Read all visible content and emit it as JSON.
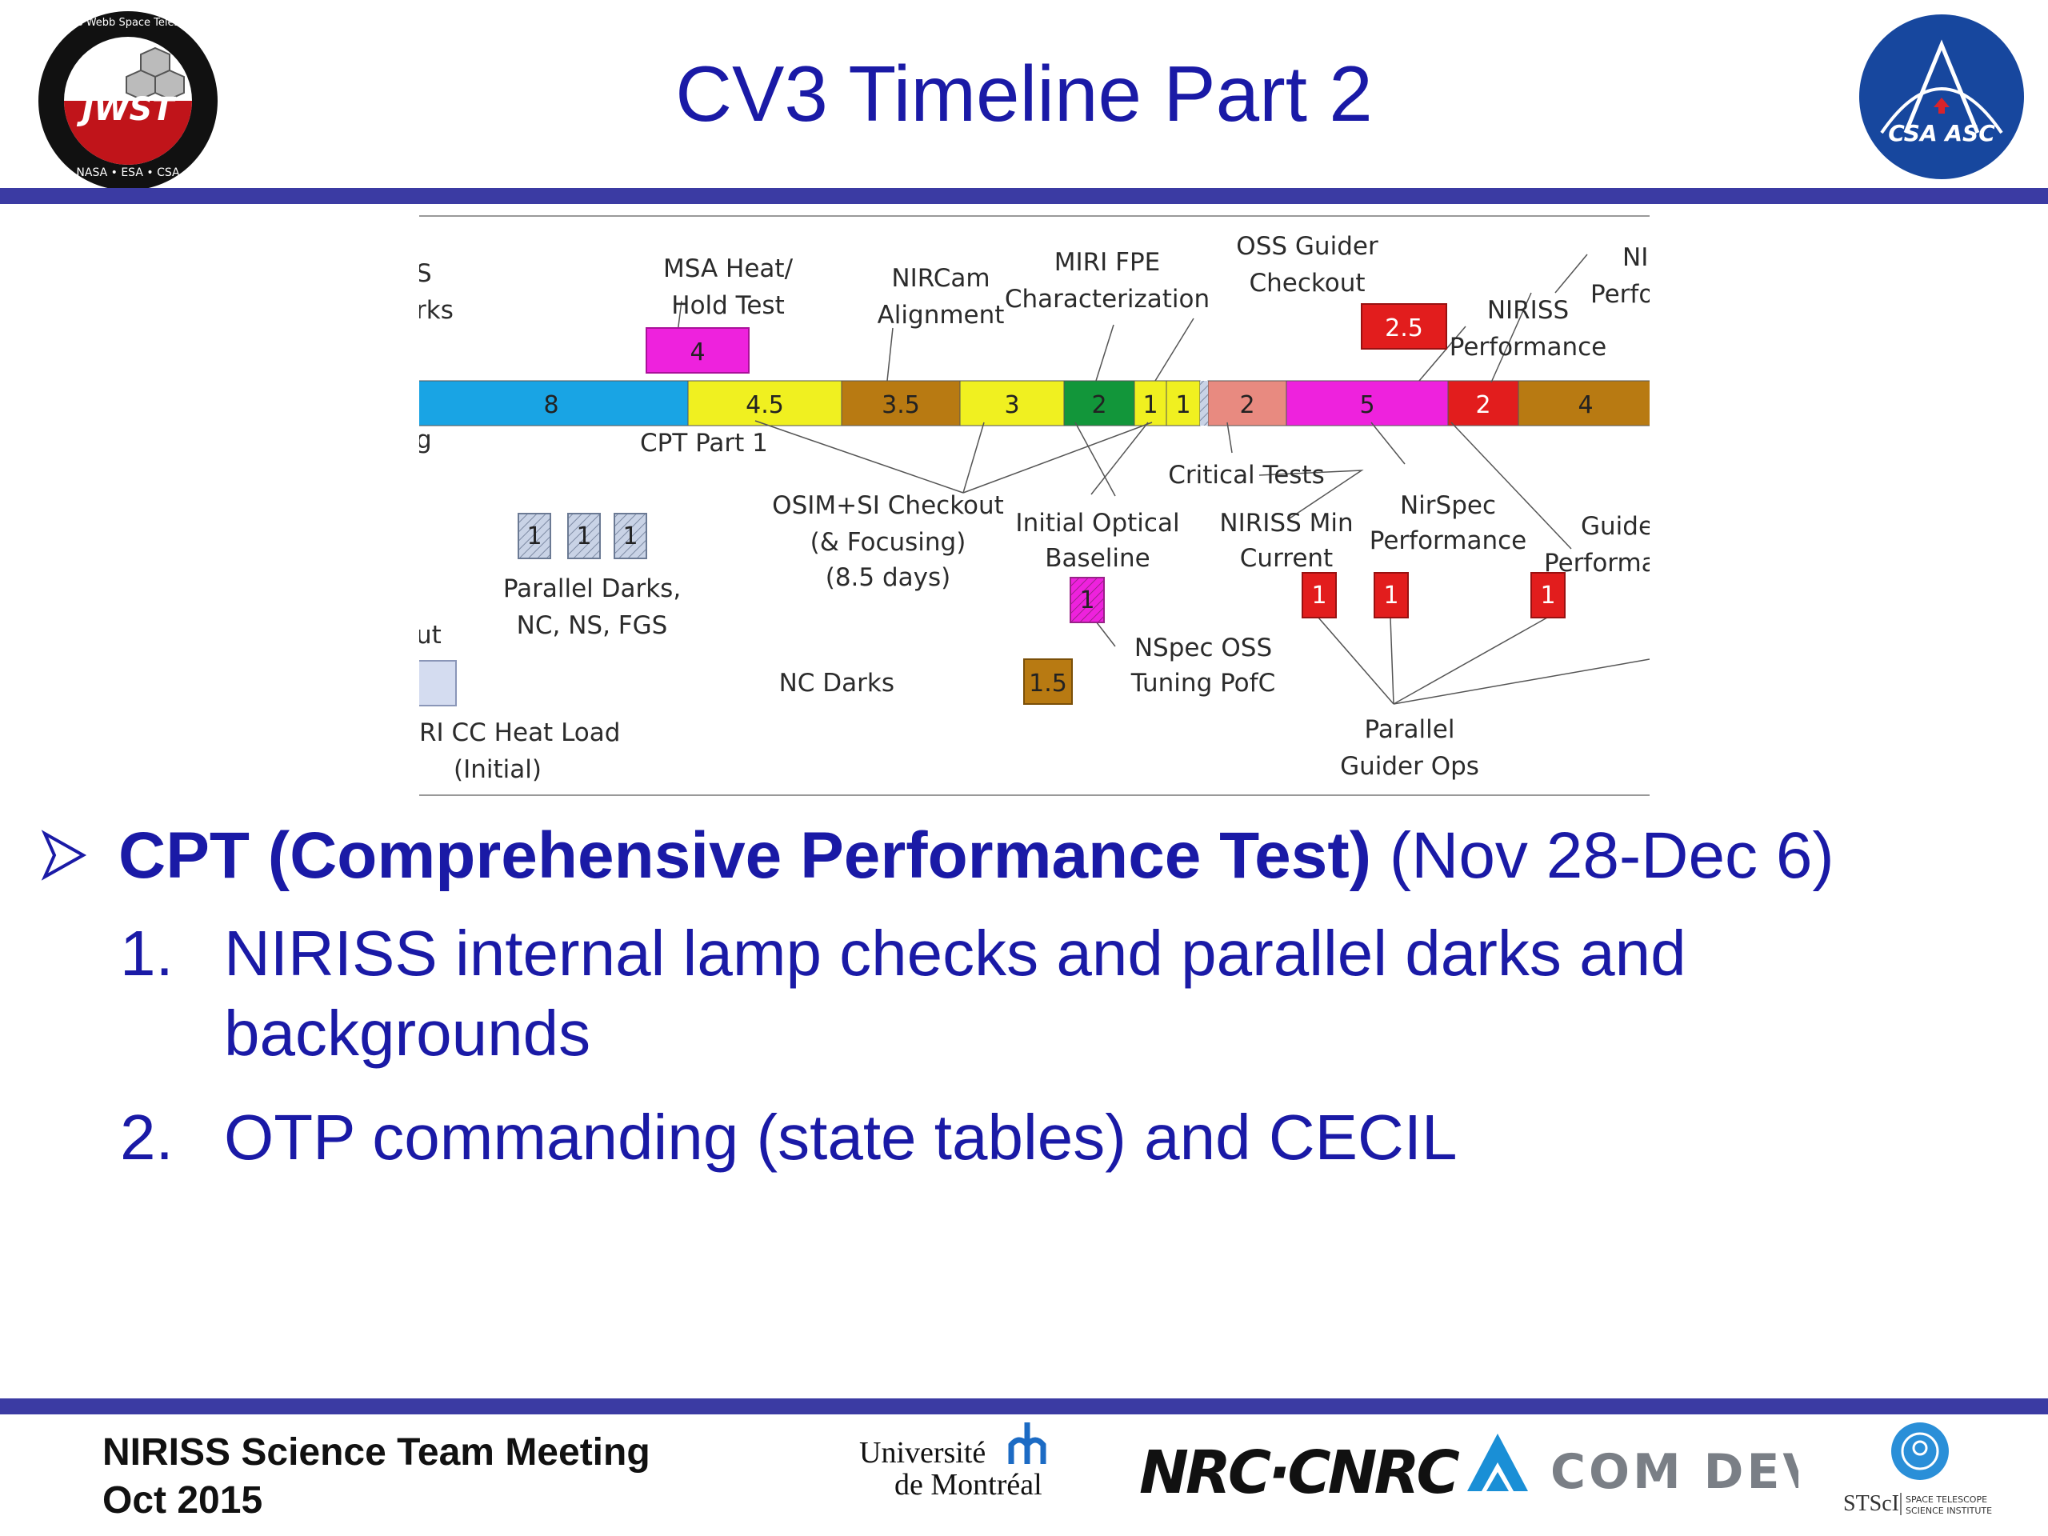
{
  "slide": {
    "title": "CV3 Timeline Part 2"
  },
  "logos": {
    "jwst_ring_text": "James Webb Space Telescope",
    "jwst_name": "JWST",
    "jwst_partners": "NASA • ESA • CSA",
    "csa_text": "CSA ASC"
  },
  "timeline": {
    "bar_segments": [
      {
        "value": "8",
        "color": "#19a4e4"
      },
      {
        "value": "4.5",
        "color": "#f0f020"
      },
      {
        "value": "3.5",
        "color": "#b87a12"
      },
      {
        "value": "3",
        "color": "#f0f020"
      },
      {
        "value": "2",
        "color": "#12963a"
      },
      {
        "value": "1",
        "color": "#f0f020"
      },
      {
        "value": "1",
        "color": "#f0f020"
      },
      {
        "value": "2",
        "color": "#e88a80"
      },
      {
        "value": "5",
        "color": "#ee22dd"
      },
      {
        "value": "2",
        "color": "#e21d1d"
      },
      {
        "value": "4",
        "color": "#b87a12"
      }
    ],
    "above_boxes": {
      "msa": "4",
      "niriss_perf": "2.5"
    },
    "labels": {
      "cut_s": "S",
      "cut_rks": "rks",
      "msa_1": "MSA Heat/",
      "msa_2": "Hold Test",
      "nircam_1": "NIRCam",
      "nircam_2": "Alignment",
      "miri_1": "MIRI FPE",
      "miri_2": "Characterization",
      "oss_1": "OSS Guider",
      "oss_2": "Checkout",
      "niriss_1": "NIRISS",
      "niriss_2": "Performance",
      "ni_1": "NI",
      "ni_2": "Perfo",
      "cut_g": "g",
      "cpt1": "CPT Part 1",
      "critical": "Critical Tests",
      "osim_1": "OSIM+SI Checkout",
      "osim_2": "(& Focusing)",
      "osim_3": "(8.5 days)",
      "iob_1": "Initial Optical",
      "iob_2": "Baseline",
      "nmin_1": "NIRISS Min",
      "nmin_2": "Current",
      "nsp_1": "NirSpec",
      "nsp_2": "Performance",
      "guide_1": "Guide",
      "guide_2": "Performa",
      "pd_1": "Parallel Darks,",
      "pd_2": "NC, NS, FGS",
      "cut_ut": "ut",
      "nc_darks": "NC Darks",
      "nspec_oss_1": "NSpec OSS",
      "nspec_oss_2": "Tuning PofC",
      "miri_cc_1": "RI CC Heat Load",
      "miri_cc_2": "(Initial)",
      "pgo_1": "Parallel",
      "pgo_2": "Guider Ops"
    },
    "small_boxes": {
      "pd": [
        "1",
        "1",
        "1"
      ],
      "nspec": "1",
      "nc_darks": "1.5",
      "pgo": [
        "1",
        "1",
        "1"
      ]
    }
  },
  "bullets": {
    "main_bold": "CPT (Comprehensive Performance Test)",
    "main_rest": " (Nov 28-Dec 6)",
    "sub": [
      {
        "num": "1.",
        "text": "NIRISS internal lamp checks and parallel darks and backgrounds"
      },
      {
        "num": "2.",
        "text": "OTP commanding (state tables) and CECIL"
      }
    ]
  },
  "footer": {
    "line1": "NIRISS Science Team Meeting",
    "line2": "Oct 2015",
    "udem_1": "Université",
    "udem_2": "de Montréal",
    "nrc": "NRC·CNRC",
    "comdev": "COM DEV",
    "stsci": "STScI",
    "stsci_sub_1": "SPACE TELESCOPE",
    "stsci_sub_2": "SCIENCE INSTITUTE"
  },
  "colors": {
    "title": "#1a1aa6",
    "rule": "#3b3ba3",
    "accent_red": "#e21d1d"
  }
}
